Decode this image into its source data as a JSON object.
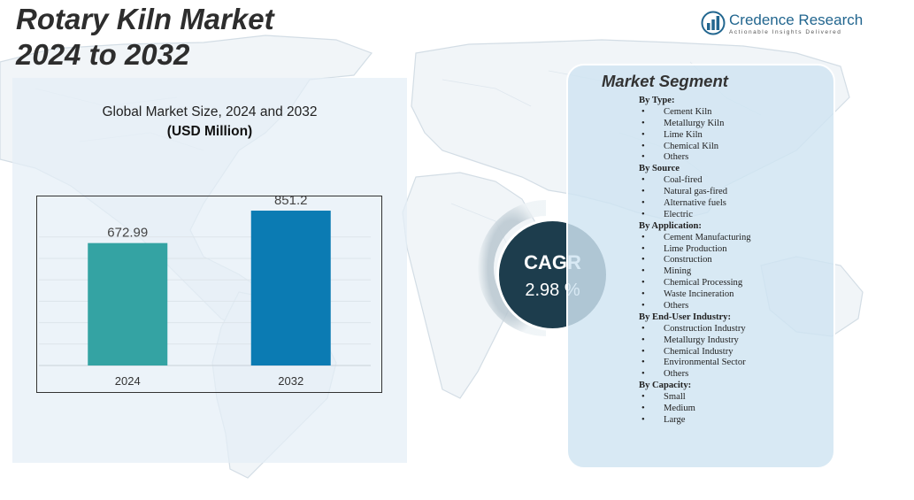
{
  "title": {
    "line1": "Rotary Kiln Market",
    "line2": "2024 to 2032"
  },
  "brand": {
    "name": "Credence Research",
    "tagline": "Actionable Insights Delivered"
  },
  "chart_heading": "Global Market Size,  2024 and 2032",
  "chart_unit": "(USD Million)",
  "chart_data": {
    "type": "bar",
    "title": "Global Market Size,  2024 and 2032",
    "subtitle": "(USD Million)",
    "categories": [
      "2024",
      "2032"
    ],
    "values": [
      672.99,
      851.2
    ],
    "value_labels": [
      "672.99",
      "851.2"
    ],
    "colors": [
      "#34a3a3",
      "#0b7bb3"
    ],
    "ylim": [
      0,
      900
    ],
    "grid": true,
    "legend": "none"
  },
  "cagr": {
    "label": "CAGR",
    "value": "2.98 %"
  },
  "segments": {
    "title": "Market Segment",
    "groups": [
      {
        "heading": "By Type:",
        "items": [
          "Cement  Kiln",
          "Metallurgy  Kiln",
          "Lime  Kiln",
          "Chemical  Kiln",
          "Others"
        ]
      },
      {
        "heading": "By Source",
        "items": [
          "Coal-fired",
          "Natural gas-fired",
          "Alternative fuels",
          "Electric"
        ]
      },
      {
        "heading": "By Application:",
        "items": [
          "Cement  Manufacturing",
          "Lime  Production",
          "Construction",
          "Mining",
          "Chemical  Processing",
          "Waste Incineration",
          "Others"
        ]
      },
      {
        "heading": "By End-User  Industry:",
        "items": [
          "Construction Industry",
          "Metallurgy Industry",
          "Chemical  Industry",
          "Environmental  Sector",
          "Others"
        ]
      },
      {
        "heading": "By Capacity:",
        "items": [
          "Small",
          "Medium",
          "Large"
        ]
      }
    ]
  },
  "colors": {
    "title": "#2d2d2d",
    "brand": "#22668f",
    "cagr_circle": "#1d3d4d",
    "panel_chart": "#e4eff7",
    "panel_segment": "#d0e4f2"
  }
}
